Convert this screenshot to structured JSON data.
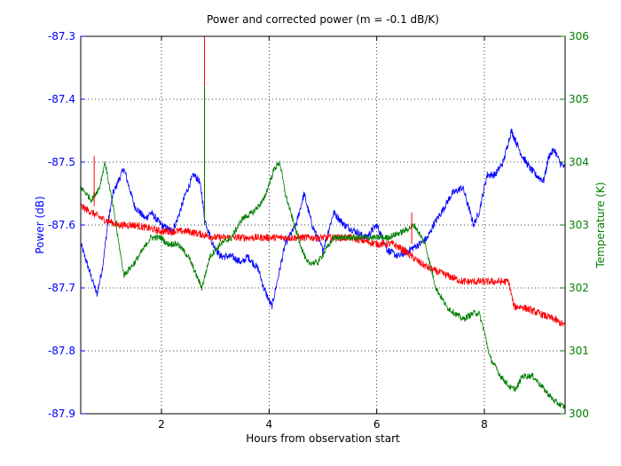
{
  "chart_data": {
    "type": "line",
    "title": "Power and corrected power (m = -0.1 dB/K)",
    "xlabel": "Hours from observation start",
    "ylabel_left": "Power (dB)",
    "ylabel_right": "Temperature (K)",
    "xlim": [
      0.5,
      9.5
    ],
    "ylim_left": [
      -87.9,
      -87.3
    ],
    "ylim_right": [
      300,
      306
    ],
    "xticks": [
      2,
      4,
      6,
      8
    ],
    "yticks_left": [
      -87.3,
      -87.4,
      -87.5,
      -87.6,
      -87.7,
      -87.8,
      -87.9
    ],
    "yticks_left_labels": [
      "-87.3",
      "-87.4",
      "-87.5",
      "-87.6",
      "-87.7",
      "-87.8",
      "-87.9"
    ],
    "yticks_right": [
      306,
      305,
      304,
      303,
      302,
      301,
      300
    ],
    "yticks_right_labels": [
      "306",
      "305",
      "304",
      "303",
      "302",
      "301",
      "300"
    ],
    "grid": true,
    "colors": {
      "power": "#0000ff",
      "corrected": "#ff0000",
      "temperature": "#007f00",
      "axis_left": "#0000ff",
      "axis_right": "#007f00"
    },
    "series": [
      {
        "axis": "left",
        "color": "#0000ff",
        "noise": 0.006,
        "x": [
          0.5,
          0.65,
          0.8,
          0.9,
          1.0,
          1.1,
          1.3,
          1.5,
          1.7,
          1.8,
          2.0,
          2.2,
          2.3,
          2.45,
          2.6,
          2.7,
          2.75,
          2.8,
          2.95,
          3.1,
          3.3,
          3.5,
          3.6,
          3.8,
          3.9,
          4.05,
          4.2,
          4.3,
          4.5,
          4.65,
          4.8,
          5.0,
          5.2,
          5.4,
          5.6,
          5.8,
          6.0,
          6.2,
          6.4,
          6.6,
          6.8,
          6.95,
          7.05,
          7.2,
          7.4,
          7.6,
          7.7,
          7.8,
          7.9,
          8.05,
          8.2,
          8.35,
          8.5,
          8.6,
          8.7,
          8.85,
          8.95,
          9.1,
          9.2,
          9.3,
          9.4,
          9.5
        ],
        "y": [
          -87.63,
          -87.67,
          -87.71,
          -87.67,
          -87.6,
          -87.55,
          -87.51,
          -87.57,
          -87.59,
          -87.58,
          -87.6,
          -87.61,
          -87.59,
          -87.55,
          -87.52,
          -87.53,
          -87.55,
          -87.59,
          -87.63,
          -87.65,
          -87.65,
          -87.66,
          -87.65,
          -87.67,
          -87.7,
          -87.73,
          -87.67,
          -87.63,
          -87.6,
          -87.55,
          -87.6,
          -87.64,
          -87.58,
          -87.6,
          -87.61,
          -87.62,
          -87.6,
          -87.64,
          -87.65,
          -87.64,
          -87.63,
          -87.62,
          -87.6,
          -87.58,
          -87.55,
          -87.54,
          -87.57,
          -87.6,
          -87.58,
          -87.52,
          -87.52,
          -87.5,
          -87.45,
          -87.47,
          -87.49,
          -87.51,
          -87.52,
          -87.53,
          -87.49,
          -87.48,
          -87.5,
          -87.51
        ]
      },
      {
        "axis": "left",
        "color": "#ff0000",
        "noise": 0.006,
        "x": [
          0.5,
          0.7,
          0.9,
          1.2,
          1.5,
          2.0,
          2.5,
          3.0,
          3.5,
          4.0,
          4.5,
          5.0,
          5.5,
          6.0,
          6.3,
          6.5,
          6.8,
          7.0,
          7.3,
          7.6,
          7.9,
          8.2,
          8.45,
          8.55,
          8.7,
          9.0,
          9.3,
          9.5
        ],
        "y": [
          -87.57,
          -87.58,
          -87.59,
          -87.6,
          -87.6,
          -87.61,
          -87.61,
          -87.62,
          -87.62,
          -87.62,
          -87.62,
          -87.62,
          -87.62,
          -87.63,
          -87.63,
          -87.64,
          -87.66,
          -87.67,
          -87.68,
          -87.69,
          -87.69,
          -87.69,
          -87.69,
          -87.73,
          -87.73,
          -87.74,
          -87.75,
          -87.76
        ]
      },
      {
        "axis": "right",
        "color": "#007f00",
        "noise": 0.05,
        "x": [
          0.5,
          0.7,
          0.85,
          0.95,
          1.1,
          1.3,
          1.5,
          1.8,
          2.0,
          2.1,
          2.3,
          2.5,
          2.7,
          2.75,
          2.9,
          3.1,
          3.3,
          3.5,
          3.7,
          3.9,
          4.1,
          4.2,
          4.3,
          4.5,
          4.7,
          4.9,
          5.2,
          5.5,
          5.8,
          6.0,
          6.2,
          6.5,
          6.7,
          6.9,
          7.1,
          7.3,
          7.6,
          7.8,
          7.9,
          8.0,
          8.1,
          8.3,
          8.5,
          8.6,
          8.7,
          8.9,
          9.1,
          9.3,
          9.5
        ],
        "y": [
          303.6,
          303.4,
          303.6,
          304.0,
          303.3,
          302.2,
          302.4,
          302.8,
          302.8,
          302.7,
          302.7,
          302.5,
          302.1,
          302.0,
          302.5,
          302.7,
          302.8,
          303.1,
          303.2,
          303.4,
          303.9,
          304.0,
          303.5,
          302.9,
          302.4,
          302.4,
          302.8,
          302.8,
          302.8,
          302.8,
          302.8,
          302.9,
          303.0,
          302.7,
          302.0,
          301.7,
          301.5,
          301.6,
          301.6,
          301.3,
          300.9,
          300.6,
          300.4,
          300.4,
          300.6,
          300.6,
          300.4,
          300.2,
          300.1
        ]
      }
    ],
    "spikes": [
      {
        "axis": "left",
        "color": "#ff0000",
        "x": 2.8,
        "y_from": -87.6,
        "y_to": -87.3
      },
      {
        "axis": "left",
        "color": "#007f00",
        "x": 2.8,
        "y_from": -87.6,
        "y_to": -87.38
      },
      {
        "axis": "left",
        "color": "#ff0000",
        "x": 0.75,
        "y_from": -87.57,
        "y_to": -87.49
      },
      {
        "axis": "left",
        "color": "#ff0000",
        "x": 6.65,
        "y_from": -87.63,
        "y_to": -87.58
      }
    ]
  }
}
